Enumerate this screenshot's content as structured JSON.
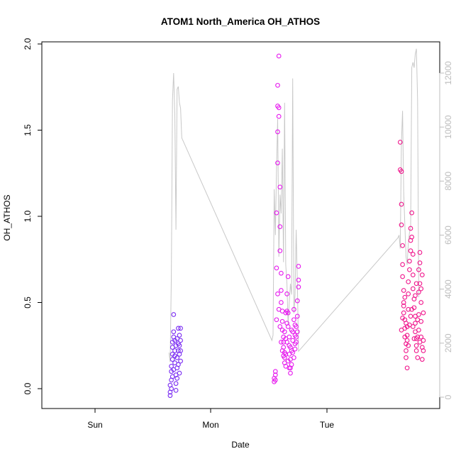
{
  "chart_data": {
    "type": "scatter",
    "title": "ATOM1 North_America OH_ATHOS",
    "xlabel": "Date",
    "ylabel": "OH_ATHOS",
    "x_ticks": [
      "Sun",
      "Mon",
      "Tue"
    ],
    "y_ticks": [
      "0.0",
      "0.5",
      "1.0",
      "1.5",
      "2.0"
    ],
    "y_right_ticks": [
      "0",
      "2000",
      "4000",
      "6000",
      "8000",
      "10000",
      "12000"
    ],
    "ylim": [
      -0.1,
      2.0
    ],
    "y_right_lim": [
      -200,
      12600
    ],
    "xlim_days": [
      -0.38,
      2.95
    ],
    "colors": {
      "line": "#c8c8c8",
      "group1": "#7a2cf2",
      "group2": "#e619ee",
      "group3": "#f0168c"
    },
    "point_groups": [
      {
        "color": "#7a2cf2",
        "points": [
          [
            -0.35,
            -0.02
          ],
          [
            -0.35,
            0.02
          ],
          [
            -0.34,
            0.05
          ],
          [
            -0.34,
            0.1
          ],
          [
            -0.34,
            0.13
          ],
          [
            -0.33,
            0.17
          ],
          [
            -0.33,
            0.2
          ],
          [
            -0.33,
            0.24
          ],
          [
            -0.33,
            0.27
          ],
          [
            -0.32,
            0.3
          ],
          [
            -0.32,
            0.33
          ],
          [
            -0.32,
            0.43
          ],
          [
            -0.31,
            0.28
          ],
          [
            -0.31,
            0.22
          ],
          [
            -0.31,
            0.15
          ],
          [
            -0.3,
            0.08
          ],
          [
            -0.3,
            0.03
          ],
          [
            -0.3,
            -0.01
          ],
          [
            -0.29,
            0.06
          ],
          [
            -0.29,
            0.12
          ],
          [
            -0.29,
            0.18
          ],
          [
            -0.28,
            0.22
          ],
          [
            -0.28,
            0.26
          ],
          [
            -0.28,
            0.35
          ],
          [
            -0.27,
            0.31
          ],
          [
            -0.27,
            0.25
          ],
          [
            -0.27,
            0.2
          ],
          [
            -0.26,
            0.16
          ],
          [
            -0.26,
            0.28
          ],
          [
            -0.26,
            0.35
          ],
          [
            -0.35,
            -0.04
          ],
          [
            -0.34,
            0.0
          ],
          [
            -0.33,
            0.07
          ],
          [
            -0.32,
            0.11
          ],
          [
            -0.31,
            0.19
          ],
          [
            -0.3,
            0.25
          ],
          [
            -0.29,
            0.29
          ],
          [
            -0.28,
            0.14
          ],
          [
            -0.27,
            0.09
          ],
          [
            -0.26,
            0.22
          ]
        ]
      },
      {
        "color": "#e619ee",
        "points": [
          [
            0.55,
            0.04
          ],
          [
            0.55,
            0.06
          ],
          [
            0.56,
            0.08
          ],
          [
            0.56,
            0.1
          ],
          [
            0.56,
            0.05
          ],
          [
            0.57,
            0.4
          ],
          [
            0.57,
            0.7
          ],
          [
            0.57,
            1.02
          ],
          [
            0.58,
            1.31
          ],
          [
            0.58,
            1.49
          ],
          [
            0.58,
            1.64
          ],
          [
            0.58,
            1.76
          ],
          [
            0.59,
            1.93
          ],
          [
            0.59,
            1.63
          ],
          [
            0.59,
            1.58
          ],
          [
            0.6,
            1.17
          ],
          [
            0.6,
            0.94
          ],
          [
            0.6,
            0.8
          ],
          [
            0.61,
            0.67
          ],
          [
            0.61,
            0.57
          ],
          [
            0.61,
            0.5
          ],
          [
            0.62,
            0.45
          ],
          [
            0.62,
            0.39
          ],
          [
            0.62,
            0.34
          ],
          [
            0.63,
            0.3
          ],
          [
            0.63,
            0.27
          ],
          [
            0.63,
            0.24
          ],
          [
            0.64,
            0.21
          ],
          [
            0.64,
            0.18
          ],
          [
            0.64,
            0.15
          ],
          [
            0.65,
            0.13
          ],
          [
            0.65,
            0.2
          ],
          [
            0.65,
            0.29
          ],
          [
            0.66,
            0.38
          ],
          [
            0.66,
            0.45
          ],
          [
            0.66,
            0.55
          ],
          [
            0.67,
            0.65
          ],
          [
            0.67,
            0.44
          ],
          [
            0.67,
            0.36
          ],
          [
            0.68,
            0.3
          ],
          [
            0.68,
            0.25
          ],
          [
            0.68,
            0.2
          ],
          [
            0.69,
            0.17
          ],
          [
            0.69,
            0.12
          ],
          [
            0.69,
            0.09
          ],
          [
            0.7,
            0.14
          ],
          [
            0.7,
            0.22
          ],
          [
            0.71,
            0.28
          ],
          [
            0.71,
            0.33
          ],
          [
            0.72,
            0.4
          ],
          [
            0.72,
            0.46
          ],
          [
            0.73,
            0.37
          ],
          [
            0.73,
            0.31
          ],
          [
            0.73,
            0.26
          ],
          [
            0.74,
            0.3
          ],
          [
            0.74,
            0.36
          ],
          [
            0.75,
            0.42
          ],
          [
            0.75,
            0.51
          ],
          [
            0.76,
            0.59
          ],
          [
            0.76,
            0.63
          ],
          [
            0.76,
            0.71
          ],
          [
            0.58,
            0.55
          ],
          [
            0.59,
            0.46
          ],
          [
            0.6,
            0.36
          ],
          [
            0.61,
            0.27
          ],
          [
            0.62,
            0.22
          ],
          [
            0.63,
            0.19
          ],
          [
            0.64,
            0.33
          ],
          [
            0.65,
            0.44
          ],
          [
            0.66,
            0.27
          ],
          [
            0.67,
            0.16
          ],
          [
            0.68,
            0.12
          ],
          [
            0.69,
            0.24
          ],
          [
            0.7,
            0.34
          ],
          [
            0.71,
            0.21
          ],
          [
            0.72,
            0.18
          ],
          [
            0.73,
            0.23
          ],
          [
            0.74,
            0.27
          ],
          [
            0.75,
            0.33
          ]
        ]
      },
      {
        "color": "#f0168c",
        "points": [
          [
            1.64,
            1.43
          ],
          [
            1.64,
            1.27
          ],
          [
            1.65,
            1.26
          ],
          [
            1.65,
            1.07
          ],
          [
            1.65,
            0.95
          ],
          [
            1.66,
            0.83
          ],
          [
            1.66,
            0.72
          ],
          [
            1.66,
            0.65
          ],
          [
            1.67,
            0.57
          ],
          [
            1.67,
            0.5
          ],
          [
            1.67,
            0.44
          ],
          [
            1.68,
            0.4
          ],
          [
            1.68,
            0.35
          ],
          [
            1.68,
            0.3
          ],
          [
            1.69,
            0.26
          ],
          [
            1.69,
            0.22
          ],
          [
            1.69,
            0.18
          ],
          [
            1.7,
            0.12
          ],
          [
            1.7,
            0.28
          ],
          [
            1.7,
            0.36
          ],
          [
            1.71,
            0.46
          ],
          [
            1.71,
            0.55
          ],
          [
            1.71,
            0.62
          ],
          [
            1.72,
            0.69
          ],
          [
            1.72,
            0.74
          ],
          [
            1.73,
            0.8
          ],
          [
            1.73,
            0.86
          ],
          [
            1.73,
            0.93
          ],
          [
            1.74,
            1.02
          ],
          [
            1.74,
            0.88
          ],
          [
            1.75,
            0.78
          ],
          [
            1.75,
            0.66
          ],
          [
            1.75,
            0.58
          ],
          [
            1.76,
            0.52
          ],
          [
            1.76,
            0.47
          ],
          [
            1.77,
            0.42
          ],
          [
            1.77,
            0.38
          ],
          [
            1.77,
            0.33
          ],
          [
            1.78,
            0.29
          ],
          [
            1.78,
            0.25
          ],
          [
            1.78,
            0.22
          ],
          [
            1.79,
            0.18
          ],
          [
            1.79,
            0.3
          ],
          [
            1.8,
            0.43
          ],
          [
            1.8,
            0.56
          ],
          [
            1.8,
            0.69
          ],
          [
            1.81,
            0.79
          ],
          [
            1.81,
            0.73
          ],
          [
            1.81,
            0.61
          ],
          [
            1.82,
            0.5
          ],
          [
            1.82,
            0.39
          ],
          [
            1.82,
            0.3
          ],
          [
            1.83,
            0.24
          ],
          [
            1.83,
            0.17
          ],
          [
            1.84,
            0.22
          ],
          [
            1.84,
            0.28
          ],
          [
            1.65,
            0.34
          ],
          [
            1.66,
            0.41
          ],
          [
            1.67,
            0.48
          ],
          [
            1.68,
            0.53
          ],
          [
            1.69,
            0.38
          ],
          [
            1.7,
            0.31
          ],
          [
            1.71,
            0.25
          ],
          [
            1.72,
            0.37
          ],
          [
            1.73,
            0.42
          ],
          [
            1.74,
            0.46
          ],
          [
            1.75,
            0.36
          ],
          [
            1.76,
            0.29
          ],
          [
            1.77,
            0.54
          ],
          [
            1.78,
            0.61
          ],
          [
            1.79,
            0.4
          ],
          [
            1.8,
            0.34
          ],
          [
            1.81,
            0.27
          ],
          [
            1.82,
            0.58
          ],
          [
            1.83,
            0.66
          ],
          [
            1.84,
            0.44
          ]
        ]
      }
    ],
    "line_series": {
      "name": "",
      "points": [
        [
          -0.36,
          1650
        ],
        [
          -0.35,
          1300
        ],
        [
          -0.34,
          4500
        ],
        [
          -0.33,
          11000
        ],
        [
          -0.32,
          12000
        ],
        [
          -0.31,
          10500
        ],
        [
          -0.3,
          6200
        ],
        [
          -0.29,
          11400
        ],
        [
          -0.28,
          11500
        ],
        [
          -0.27,
          10900
        ],
        [
          -0.26,
          10700
        ],
        [
          -0.25,
          9600
        ],
        [
          0.53,
          2100
        ],
        [
          0.54,
          2300
        ],
        [
          0.55,
          7700
        ],
        [
          0.56,
          6000
        ],
        [
          0.57,
          8500
        ],
        [
          0.58,
          10300
        ],
        [
          0.59,
          5200
        ],
        [
          0.6,
          7500
        ],
        [
          0.61,
          6800
        ],
        [
          0.62,
          9200
        ],
        [
          0.63,
          5000
        ],
        [
          0.64,
          10900
        ],
        [
          0.65,
          4900
        ],
        [
          0.66,
          4200
        ],
        [
          0.67,
          2700
        ],
        [
          0.68,
          3500
        ],
        [
          0.69,
          4200
        ],
        [
          0.7,
          3800
        ],
        [
          0.71,
          11800
        ],
        [
          0.72,
          3100
        ],
        [
          0.73,
          3800
        ],
        [
          0.74,
          6200
        ],
        [
          0.75,
          4200
        ],
        [
          0.76,
          1700
        ],
        [
          1.62,
          5900
        ],
        [
          1.63,
          6000
        ],
        [
          1.64,
          5500
        ],
        [
          1.65,
          9400
        ],
        [
          1.66,
          10600
        ],
        [
          1.67,
          7600
        ],
        [
          1.68,
          6400
        ],
        [
          1.69,
          5200
        ],
        [
          1.7,
          4900
        ],
        [
          1.71,
          5700
        ],
        [
          1.72,
          6100
        ],
        [
          1.73,
          6300
        ],
        [
          1.74,
          12200
        ],
        [
          1.75,
          12400
        ],
        [
          1.76,
          12200
        ],
        [
          1.77,
          12700
        ],
        [
          1.78,
          12900
        ],
        [
          1.79,
          11000
        ],
        [
          1.8,
          3700
        ]
      ]
    }
  }
}
